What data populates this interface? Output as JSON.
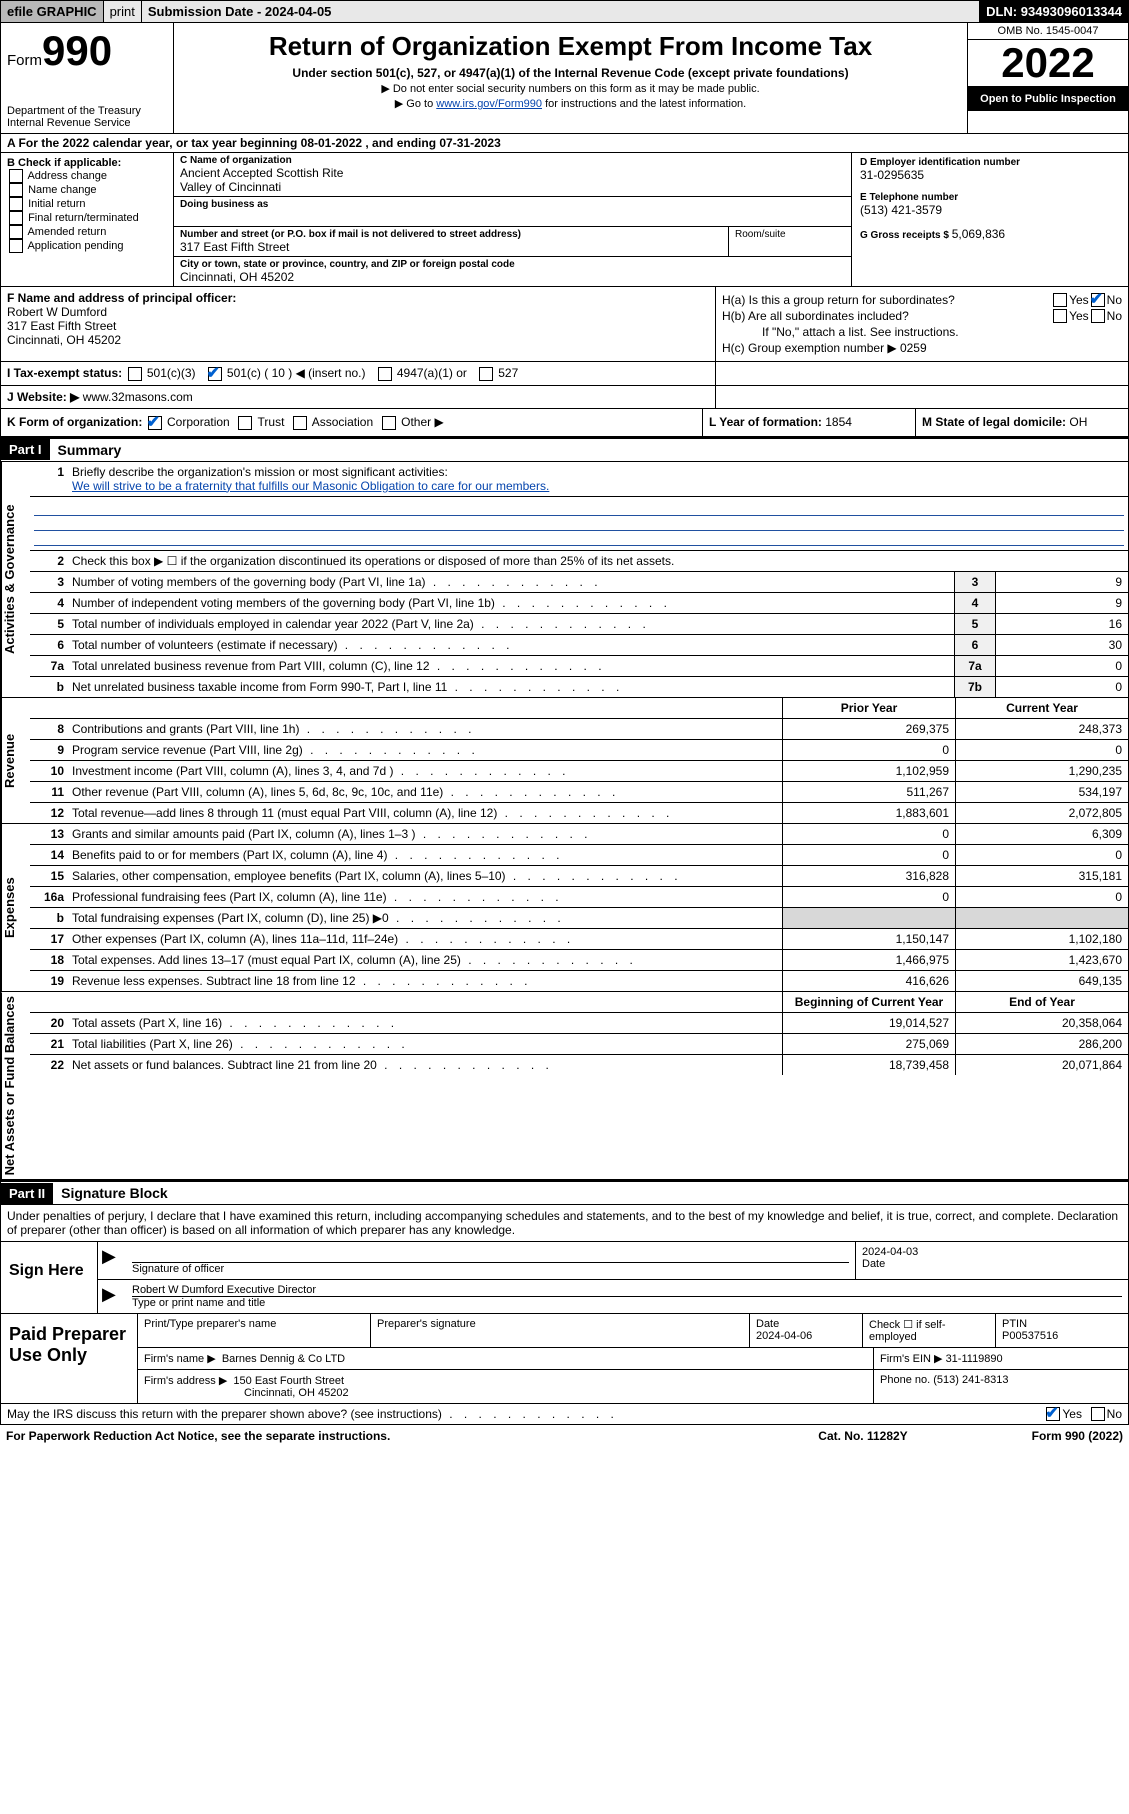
{
  "topbar": {
    "efile": "efile GRAPHIC",
    "print": "print",
    "subdate_label": "Submission Date - ",
    "subdate": "2024-04-05",
    "dln_label": "DLN: ",
    "dln": "93493096013344"
  },
  "header": {
    "form_label": "Form",
    "form_num": "990",
    "dept": "Department of the Treasury",
    "irs": "Internal Revenue Service",
    "title": "Return of Organization Exempt From Income Tax",
    "sub": "Under section 501(c), 527, or 4947(a)(1) of the Internal Revenue Code (except private foundations)",
    "note1": "▶ Do not enter social security numbers on this form as it may be made public.",
    "note2_a": "▶ Go to ",
    "note2_link": "www.irs.gov/Form990",
    "note2_b": " for instructions and the latest information.",
    "omb": "OMB No. 1545-0047",
    "year": "2022",
    "inspect": "Open to Public Inspection"
  },
  "rowA": "A For the 2022 calendar year, or tax year beginning 08-01-2022    , and ending 07-31-2023",
  "colB": {
    "hdr": "B Check if applicable:",
    "items": [
      "Address change",
      "Name change",
      "Initial return",
      "Final return/terminated",
      "Amended return",
      "Application pending"
    ]
  },
  "colC": {
    "name_lbl": "C Name of organization",
    "name1": "Ancient Accepted Scottish Rite",
    "name2": "Valley of Cincinnati",
    "dba_lbl": "Doing business as",
    "addr_lbl": "Number and street (or P.O. box if mail is not delivered to street address)",
    "room_lbl": "Room/suite",
    "addr": "317 East Fifth Street",
    "city_lbl": "City or town, state or province, country, and ZIP or foreign postal code",
    "city": "Cincinnati, OH  45202"
  },
  "colD": {
    "ein_lbl": "D Employer identification number",
    "ein": "31-0295635",
    "tel_lbl": "E Telephone number",
    "tel": "(513) 421-3579",
    "gross_lbl": "G Gross receipts $ ",
    "gross": "5,069,836"
  },
  "rowF": {
    "lbl": "F  Name and address of principal officer:",
    "name": "Robert W Dumford",
    "addr1": "317 East Fifth Street",
    "addr2": "Cincinnati, OH  45202"
  },
  "rowH": {
    "a": "H(a)  Is this a group return for subordinates?",
    "b": "H(b)  Are all subordinates included?",
    "b_note": "If \"No,\" attach a list. See instructions.",
    "c": "H(c)  Group exemption number ▶  0259",
    "yes": "Yes",
    "no": "No"
  },
  "rowI": {
    "lbl": "I   Tax-exempt status:",
    "t1": "501(c)(3)",
    "t2": "501(c) ( 10 ) ◀ (insert no.)",
    "t3": "4947(a)(1) or",
    "t4": "527"
  },
  "rowJ": {
    "lbl": "J   Website: ▶ ",
    "val": "www.32masons.com"
  },
  "rowK": {
    "lbl": "K Form of organization:",
    "corp": "Corporation",
    "trust": "Trust",
    "assoc": "Association",
    "other": "Other ▶"
  },
  "rowL": {
    "lbl": "L Year of formation: ",
    "val": "1854"
  },
  "rowM": {
    "lbl": "M State of legal domicile: ",
    "val": "OH"
  },
  "parts": {
    "p1": "Part I",
    "p1_title": "Summary",
    "p2": "Part II",
    "p2_title": "Signature Block"
  },
  "sidelabels": {
    "ag": "Activities & Governance",
    "rev": "Revenue",
    "exp": "Expenses",
    "na": "Net Assets or Fund Balances"
  },
  "summary": {
    "l1": "Briefly describe the organization's mission or most significant activities:",
    "l1_text": "We will strive to be a fraternity that fulfills our Masonic Obligation to care for our members.",
    "l2": "Check this box ▶ ☐  if the organization discontinued its operations or disposed of more than 25% of its net assets.",
    "rows_single": [
      {
        "n": "3",
        "desc": "Number of voting members of the governing body (Part VI, line 1a)",
        "box": "3",
        "val": "9"
      },
      {
        "n": "4",
        "desc": "Number of independent voting members of the governing body (Part VI, line 1b)",
        "box": "4",
        "val": "9"
      },
      {
        "n": "5",
        "desc": "Total number of individuals employed in calendar year 2022 (Part V, line 2a)",
        "box": "5",
        "val": "16"
      },
      {
        "n": "6",
        "desc": "Total number of volunteers (estimate if necessary)",
        "box": "6",
        "val": "30"
      },
      {
        "n": "7a",
        "desc": "Total unrelated business revenue from Part VIII, column (C), line 12",
        "box": "7a",
        "val": "0"
      },
      {
        "n": "b",
        "desc": "Net unrelated business taxable income from Form 990-T, Part I, line 11",
        "box": "7b",
        "val": "0"
      }
    ],
    "hdr_prior": "Prior Year",
    "hdr_curr": "Current Year",
    "rev": [
      {
        "n": "8",
        "desc": "Contributions and grants (Part VIII, line 1h)",
        "p": "269,375",
        "c": "248,373"
      },
      {
        "n": "9",
        "desc": "Program service revenue (Part VIII, line 2g)",
        "p": "0",
        "c": "0"
      },
      {
        "n": "10",
        "desc": "Investment income (Part VIII, column (A), lines 3, 4, and 7d )",
        "p": "1,102,959",
        "c": "1,290,235"
      },
      {
        "n": "11",
        "desc": "Other revenue (Part VIII, column (A), lines 5, 6d, 8c, 9c, 10c, and 11e)",
        "p": "511,267",
        "c": "534,197"
      },
      {
        "n": "12",
        "desc": "Total revenue—add lines 8 through 11 (must equal Part VIII, column (A), line 12)",
        "p": "1,883,601",
        "c": "2,072,805"
      }
    ],
    "exp": [
      {
        "n": "13",
        "desc": "Grants and similar amounts paid (Part IX, column (A), lines 1–3 )",
        "p": "0",
        "c": "6,309"
      },
      {
        "n": "14",
        "desc": "Benefits paid to or for members (Part IX, column (A), line 4)",
        "p": "0",
        "c": "0"
      },
      {
        "n": "15",
        "desc": "Salaries, other compensation, employee benefits (Part IX, column (A), lines 5–10)",
        "p": "316,828",
        "c": "315,181"
      },
      {
        "n": "16a",
        "desc": "Professional fundraising fees (Part IX, column (A), line 11e)",
        "p": "0",
        "c": "0"
      },
      {
        "n": "b",
        "desc": "Total fundraising expenses (Part IX, column (D), line 25) ▶0",
        "p": "",
        "c": "",
        "shade": true
      },
      {
        "n": "17",
        "desc": "Other expenses (Part IX, column (A), lines 11a–11d, 11f–24e)",
        "p": "1,150,147",
        "c": "1,102,180"
      },
      {
        "n": "18",
        "desc": "Total expenses. Add lines 13–17 (must equal Part IX, column (A), line 25)",
        "p": "1,466,975",
        "c": "1,423,670"
      },
      {
        "n": "19",
        "desc": "Revenue less expenses. Subtract line 18 from line 12",
        "p": "416,626",
        "c": "649,135"
      }
    ],
    "hdr_begin": "Beginning of Current Year",
    "hdr_end": "End of Year",
    "na": [
      {
        "n": "20",
        "desc": "Total assets (Part X, line 16)",
        "p": "19,014,527",
        "c": "20,358,064"
      },
      {
        "n": "21",
        "desc": "Total liabilities (Part X, line 26)",
        "p": "275,069",
        "c": "286,200"
      },
      {
        "n": "22",
        "desc": "Net assets or fund balances. Subtract line 21 from line 20",
        "p": "18,739,458",
        "c": "20,071,864"
      }
    ]
  },
  "sigintro": "Under penalties of perjury, I declare that I have examined this return, including accompanying schedules and statements, and to the best of my knowledge and belief, it is true, correct, and complete. Declaration of preparer (other than officer) is based on all information of which preparer has any knowledge.",
  "sign": {
    "here": "Sign Here",
    "sig_lbl": "Signature of officer",
    "date_lbl": "Date",
    "date": "2024-04-03",
    "name": "Robert W Dumford  Executive Director",
    "name_lbl": "Type or print name and title"
  },
  "prep": {
    "title": "Paid Preparer Use Only",
    "h1": "Print/Type preparer's name",
    "h2": "Preparer's signature",
    "h3": "Date",
    "date": "2024-04-06",
    "h4": "Check ☐ if self-employed",
    "h5": "PTIN",
    "ptin": "P00537516",
    "firm_lbl": "Firm's name      ▶",
    "firm": "Barnes Dennig & Co LTD",
    "ein_lbl": "Firm's EIN ▶ ",
    "ein": "31-1119890",
    "addr_lbl": "Firm's address ▶",
    "addr1": "150 East Fourth Street",
    "addr2": "Cincinnati, OH  45202",
    "phone_lbl": "Phone no. ",
    "phone": "(513) 241-8313"
  },
  "footer": {
    "discuss": "May the IRS discuss this return with the preparer shown above? (see instructions)",
    "yes": "Yes",
    "no": "No",
    "paperwork": "For Paperwork Reduction Act Notice, see the separate instructions.",
    "cat": "Cat. No. 11282Y",
    "form": "Form 990 (2022)"
  }
}
